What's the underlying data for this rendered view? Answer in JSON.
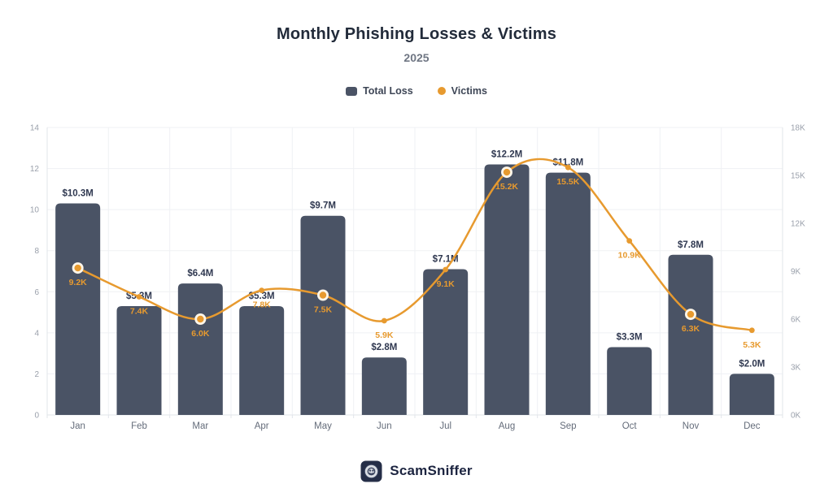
{
  "header": {
    "title": "Monthly Phishing Losses & Victims",
    "subtitle": "2025"
  },
  "legend": {
    "items": [
      {
        "label": "Total Loss",
        "shape": "square",
        "color": "#4A5365"
      },
      {
        "label": "Victims",
        "shape": "circle",
        "color": "#E79A2F"
      }
    ]
  },
  "footer": {
    "brand": "ScamSniffer"
  },
  "colors": {
    "bar": "#4A5365",
    "line": "#E79A2F",
    "bar_label": "#2F3850",
    "victim_label": "#E79A2F",
    "axis_tick": "#9AA0AB",
    "month_label": "#646C7A",
    "grid_line": "#EFF1F4",
    "axis_line": "#E2E5EA",
    "background": "#FFFFFF"
  },
  "chart_data": {
    "type": "bar+line",
    "title": "Monthly Phishing Losses & Victims",
    "subtitle": "2025",
    "categories": [
      "Jan",
      "Feb",
      "Mar",
      "Apr",
      "May",
      "Jun",
      "Jul",
      "Aug",
      "Sep",
      "Oct",
      "Nov",
      "Dec"
    ],
    "series": [
      {
        "name": "Total Loss",
        "type": "bar",
        "axis": "left",
        "unit": "$M",
        "values": [
          10.3,
          5.3,
          6.4,
          5.3,
          9.7,
          2.8,
          7.1,
          12.2,
          11.8,
          3.3,
          7.8,
          2.0
        ],
        "labels": [
          "$10.3M",
          "$5.3M",
          "$6.4M",
          "$5.3M",
          "$9.7M",
          "$2.8M",
          "$7.1M",
          "$12.2M",
          "$11.8M",
          "$3.3M",
          "$7.8M",
          "$2.0M"
        ]
      },
      {
        "name": "Victims",
        "type": "line",
        "axis": "right",
        "unit": "K",
        "values": [
          9.2,
          7.4,
          6.0,
          7.8,
          7.5,
          5.9,
          9.1,
          15.2,
          15.5,
          10.9,
          6.3,
          5.3
        ],
        "labels": [
          "9.2K",
          "7.4K",
          "6.0K",
          "7.8K",
          "7.5K",
          "5.9K",
          "9.1K",
          "15.2K",
          "15.5K",
          "10.9K",
          "6.3K",
          "5.3K"
        ],
        "ring_marker_indices": [
          0,
          2,
          4,
          7,
          10
        ]
      }
    ],
    "left_axis": {
      "ticks": [
        "0",
        "2",
        "4",
        "6",
        "8",
        "10",
        "12",
        "14"
      ],
      "min": 0,
      "max": 14
    },
    "right_axis": {
      "ticks": [
        "0K",
        "3K",
        "6K",
        "9K",
        "12K",
        "15K",
        "18K"
      ],
      "min": 0,
      "max": 18
    },
    "grid": true,
    "legend_position": "top"
  }
}
